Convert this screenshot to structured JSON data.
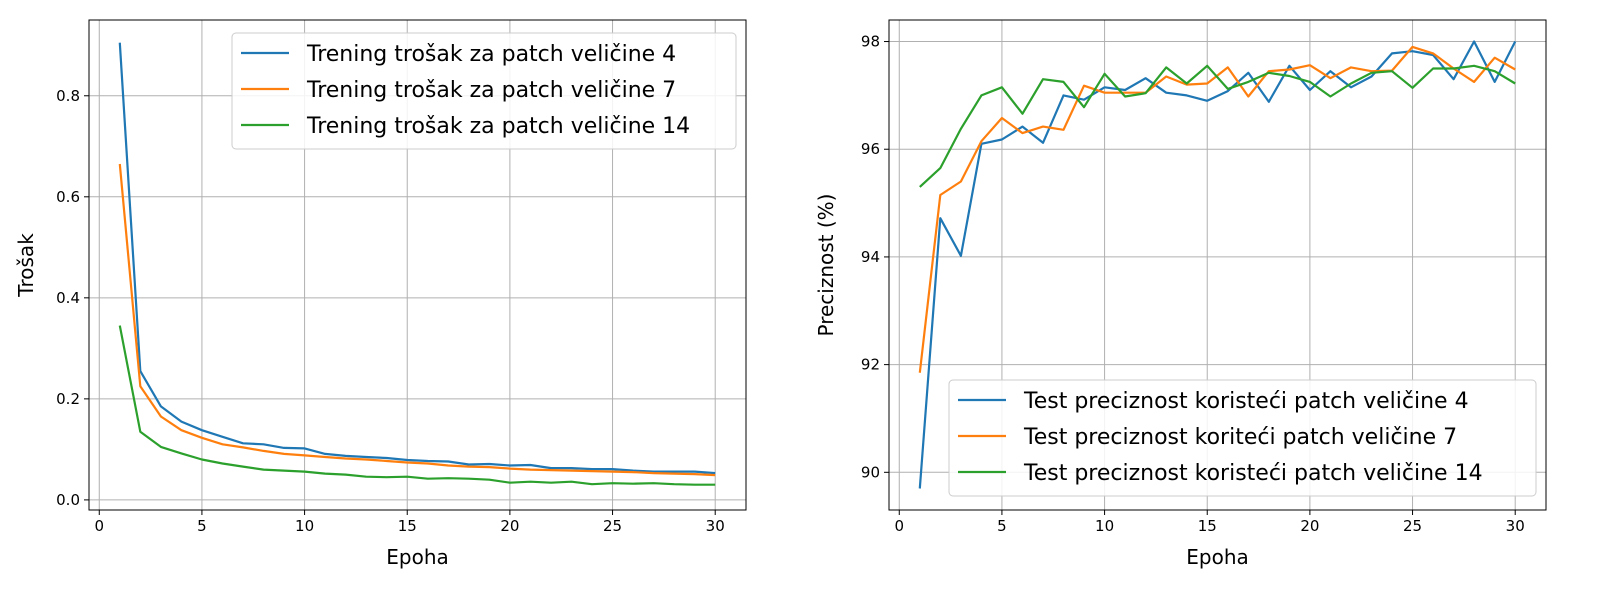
{
  "chart_data": [
    {
      "type": "line",
      "xlabel": "Epoha",
      "ylabel": "Trošak",
      "xlim": [
        -0.5,
        31.5
      ],
      "ylim": [
        -0.02,
        0.95
      ],
      "xticks": [
        0,
        5,
        10,
        15,
        20,
        25,
        30
      ],
      "yticks": [
        0.0,
        0.2,
        0.4,
        0.6,
        0.8
      ],
      "ytick_labels": [
        "0.0",
        "0.2",
        "0.4",
        "0.6",
        "0.8"
      ],
      "grid": true,
      "legend_position": "top-right",
      "x": [
        1,
        2,
        3,
        4,
        5,
        6,
        7,
        8,
        9,
        10,
        11,
        12,
        13,
        14,
        15,
        16,
        17,
        18,
        19,
        20,
        21,
        22,
        23,
        24,
        25,
        26,
        27,
        28,
        29,
        30
      ],
      "series": [
        {
          "name": "Trening trošak za patch veličine 4",
          "color": "#1f77b4",
          "values": [
            0.905,
            0.255,
            0.185,
            0.155,
            0.138,
            0.125,
            0.112,
            0.11,
            0.103,
            0.102,
            0.091,
            0.087,
            0.085,
            0.083,
            0.079,
            0.077,
            0.076,
            0.07,
            0.071,
            0.068,
            0.069,
            0.063,
            0.063,
            0.061,
            0.061,
            0.058,
            0.056,
            0.056,
            0.056,
            0.053
          ]
        },
        {
          "name": "Trening trošak za patch veličine 7",
          "color": "#ff7f0e",
          "values": [
            0.665,
            0.225,
            0.165,
            0.138,
            0.123,
            0.11,
            0.104,
            0.097,
            0.091,
            0.088,
            0.085,
            0.082,
            0.08,
            0.077,
            0.074,
            0.072,
            0.068,
            0.066,
            0.065,
            0.062,
            0.06,
            0.059,
            0.058,
            0.057,
            0.056,
            0.055,
            0.053,
            0.052,
            0.051,
            0.049
          ]
        },
        {
          "name": "Trening trošak za patch veličine 14",
          "color": "#2ca02c",
          "values": [
            0.345,
            0.135,
            0.105,
            0.092,
            0.08,
            0.072,
            0.066,
            0.06,
            0.058,
            0.056,
            0.052,
            0.05,
            0.046,
            0.045,
            0.046,
            0.042,
            0.043,
            0.042,
            0.04,
            0.034,
            0.036,
            0.034,
            0.036,
            0.031,
            0.033,
            0.032,
            0.033,
            0.031,
            0.03,
            0.03
          ]
        }
      ]
    },
    {
      "type": "line",
      "xlabel": "Epoha",
      "ylabel": "Preciznost (%)",
      "xlim": [
        -0.5,
        31.5
      ],
      "ylim": [
        89.3,
        98.4
      ],
      "xticks": [
        0,
        5,
        10,
        15,
        20,
        25,
        30
      ],
      "yticks": [
        90,
        92,
        94,
        96,
        98
      ],
      "ytick_labels": [
        "90",
        "92",
        "94",
        "96",
        "98"
      ],
      "grid": true,
      "legend_position": "bottom-right",
      "x": [
        1,
        2,
        3,
        4,
        5,
        6,
        7,
        8,
        9,
        10,
        11,
        12,
        13,
        14,
        15,
        16,
        17,
        18,
        19,
        20,
        21,
        22,
        23,
        24,
        25,
        26,
        27,
        28,
        29,
        30
      ],
      "series": [
        {
          "name": "Test preciznost koristeći patch veličine 4",
          "color": "#1f77b4",
          "values": [
            89.7,
            94.72,
            94.02,
            96.1,
            96.18,
            96.42,
            96.12,
            97.0,
            96.92,
            97.15,
            97.1,
            97.32,
            97.05,
            97.0,
            96.9,
            97.08,
            97.42,
            96.88,
            97.55,
            97.1,
            97.45,
            97.15,
            97.35,
            97.78,
            97.82,
            97.75,
            97.3,
            98.0,
            97.25,
            98.0
          ]
        },
        {
          "name": "Test preciznost koriteći patch veličine 7",
          "color": "#ff7f0e",
          "values": [
            91.85,
            95.15,
            95.4,
            96.15,
            96.58,
            96.3,
            96.42,
            96.36,
            97.18,
            97.05,
            97.05,
            97.05,
            97.35,
            97.2,
            97.22,
            97.52,
            96.98,
            97.45,
            97.48,
            97.56,
            97.32,
            97.52,
            97.45,
            97.46,
            97.9,
            97.78,
            97.5,
            97.25,
            97.7,
            97.48
          ]
        },
        {
          "name": "Test preciznost koristeći patch veličine 14",
          "color": "#2ca02c",
          "values": [
            95.3,
            95.65,
            96.38,
            97.0,
            97.15,
            96.66,
            97.3,
            97.25,
            96.78,
            97.4,
            96.98,
            97.04,
            97.52,
            97.22,
            97.55,
            97.12,
            97.25,
            97.42,
            97.36,
            97.25,
            96.98,
            97.22,
            97.42,
            97.45,
            97.14,
            97.5,
            97.5,
            97.55,
            97.45,
            97.22
          ]
        }
      ]
    }
  ]
}
